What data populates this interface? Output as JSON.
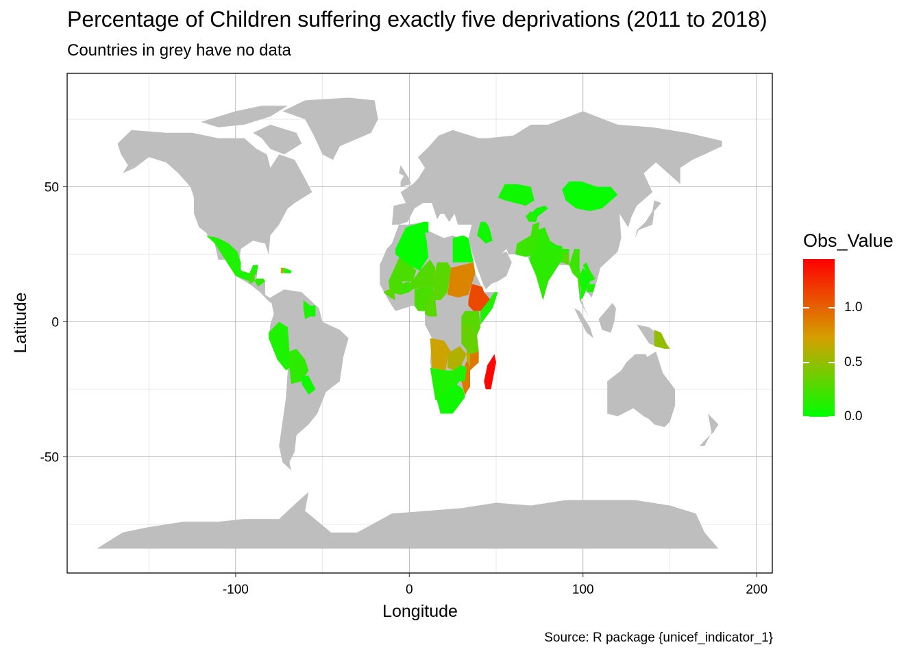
{
  "chart_data": {
    "type": "choropleth",
    "title": "Percentage of Children suffering exactly five deprivations (2011 to 2018)",
    "subtitle": "Countries in grey have no data",
    "caption": "Source: R package {unicef_indicator_1}",
    "xlabel": "Longitude",
    "ylabel": "Latitude",
    "xlim": [
      -197,
      209
    ],
    "ylim": [
      -93,
      92
    ],
    "x_ticks": [
      {
        "value": -100,
        "label": "-100"
      },
      {
        "value": 0,
        "label": "0"
      },
      {
        "value": 100,
        "label": "100"
      },
      {
        "value": 200,
        "label": "200"
      }
    ],
    "y_ticks": [
      {
        "value": 50,
        "label": "50"
      },
      {
        "value": 0,
        "label": "0"
      },
      {
        "value": -50,
        "label": "-50"
      }
    ],
    "legend": {
      "title": "Obs_Value",
      "placement": "right",
      "range": [
        0,
        1.45
      ],
      "low_color": "#00ff00",
      "mid_color": "#d4a000",
      "high_color": "#ff0000",
      "breaks": [
        {
          "value": 0.0,
          "label": "0.0"
        },
        {
          "value": 0.5,
          "label": "0.5"
        },
        {
          "value": 1.0,
          "label": "1.0"
        }
      ]
    },
    "no_data_color": "#bebebe",
    "regions": [
      {
        "name": "Madagascar",
        "value": 1.42
      },
      {
        "name": "Ethiopia",
        "value": 1.12
      },
      {
        "name": "Sudan",
        "value": 0.85
      },
      {
        "name": "Mozambique",
        "value": 0.9
      },
      {
        "name": "Angola",
        "value": 0.7
      },
      {
        "name": "Zambia",
        "value": 0.6
      },
      {
        "name": "Malawi",
        "value": 0.65
      },
      {
        "name": "Papua New Guinea",
        "value": 0.5
      },
      {
        "name": "Mali",
        "value": 0.25
      },
      {
        "name": "Niger",
        "value": 0.28
      },
      {
        "name": "Chad",
        "value": 0.3
      },
      {
        "name": "Nigeria",
        "value": 0.25
      },
      {
        "name": "Burkina Faso",
        "value": 0.22
      },
      {
        "name": "Guinea",
        "value": 0.3
      },
      {
        "name": "Cameroon",
        "value": 0.3
      },
      {
        "name": "Kenya",
        "value": 0.3
      },
      {
        "name": "Tanzania",
        "value": 0.35
      },
      {
        "name": "Uganda",
        "value": 0.3
      },
      {
        "name": "Somalia",
        "value": 0.1
      },
      {
        "name": "Zimbabwe",
        "value": 0.1
      },
      {
        "name": "Namibia",
        "value": 0.1
      },
      {
        "name": "Botswana",
        "value": 0.1
      },
      {
        "name": "South Africa",
        "value": 0.05
      },
      {
        "name": "India",
        "value": 0.15
      },
      {
        "name": "Pakistan",
        "value": 0.2
      },
      {
        "name": "Myanmar",
        "value": 0.2
      },
      {
        "name": "Bangladesh",
        "value": 0.3
      },
      {
        "name": "Nepal",
        "value": 0.1
      },
      {
        "name": "Thailand",
        "value": 0.05
      },
      {
        "name": "Cambodia",
        "value": 0.1
      },
      {
        "name": "Laos",
        "value": 0.1
      },
      {
        "name": "Mongolia",
        "value": 0.02
      },
      {
        "name": "Kazakhstan",
        "value": 0.05
      },
      {
        "name": "Kyrgyzstan",
        "value": 0.05
      },
      {
        "name": "Tajikistan",
        "value": 0.1
      },
      {
        "name": "Iraq",
        "value": 0.05
      },
      {
        "name": "Algeria",
        "value": 0.02
      },
      {
        "name": "Egypt",
        "value": 0.02
      },
      {
        "name": "Tunisia",
        "value": 0.02
      },
      {
        "name": "Mexico",
        "value": 0.1
      },
      {
        "name": "Guatemala",
        "value": 0.2
      },
      {
        "name": "Honduras",
        "value": 0.15
      },
      {
        "name": "Haiti",
        "value": 0.6
      },
      {
        "name": "Dominican Republic",
        "value": 0.05
      },
      {
        "name": "Guyana",
        "value": 0.1
      },
      {
        "name": "Suriname",
        "value": 0.05
      },
      {
        "name": "Peru",
        "value": 0.1
      },
      {
        "name": "Bolivia",
        "value": 0.15
      },
      {
        "name": "Paraguay",
        "value": 0.05
      }
    ]
  }
}
